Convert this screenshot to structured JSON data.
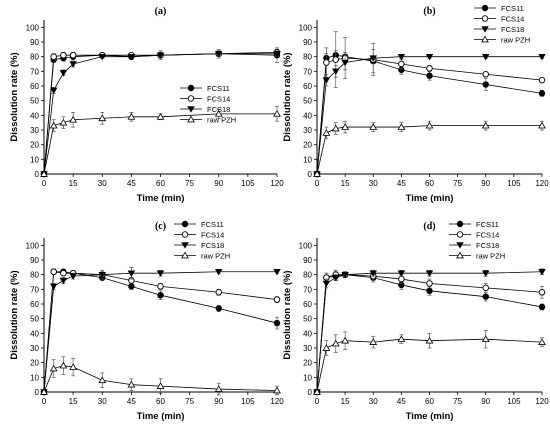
{
  "chart_data": [
    {
      "type": "line",
      "panel_label": "(a)",
      "xlabel": "Time (min)",
      "ylabel": "Dissolution rate (%)",
      "xlim": [
        0,
        120
      ],
      "ylim": [
        0,
        105
      ],
      "x_ticks": [
        0,
        15,
        30,
        45,
        60,
        75,
        90,
        105,
        120
      ],
      "y_ticks": [
        0,
        10,
        20,
        30,
        40,
        50,
        60,
        70,
        80,
        90,
        100
      ],
      "legend_position": "right-middle",
      "x": [
        0,
        5,
        10,
        15,
        30,
        45,
        60,
        90,
        120
      ],
      "series": [
        {
          "name": "FCS11",
          "marker": "circle-filled",
          "values": [
            0,
            78,
            79,
            80,
            81,
            80,
            81,
            82,
            81
          ],
          "errors": [
            0,
            2,
            2,
            2,
            1,
            2,
            3,
            3,
            5
          ]
        },
        {
          "name": "FCS14",
          "marker": "circle-open",
          "values": [
            0,
            80,
            81,
            81,
            81,
            81,
            81,
            82,
            83
          ],
          "errors": [
            0,
            2,
            2,
            2,
            1,
            1,
            2,
            2,
            2
          ]
        },
        {
          "name": "FCS18",
          "marker": "triangle-down-filled",
          "values": [
            0,
            57,
            69,
            75,
            80,
            80,
            81,
            82,
            82
          ],
          "errors": [
            0,
            2,
            2,
            2,
            1,
            1,
            2,
            2,
            2
          ]
        },
        {
          "name": "raw PZH",
          "marker": "triangle-up-open",
          "values": [
            0,
            33,
            35,
            37,
            38,
            39,
            39,
            41,
            41
          ],
          "errors": [
            0,
            4,
            4,
            5,
            4,
            3,
            2,
            3,
            5
          ]
        }
      ]
    },
    {
      "type": "line",
      "panel_label": "(b)",
      "xlabel": "Time (min)",
      "ylabel": "Dissolution rate (%)",
      "xlim": [
        0,
        120
      ],
      "ylim": [
        0,
        105
      ],
      "x_ticks": [
        0,
        15,
        30,
        45,
        60,
        75,
        90,
        105,
        120
      ],
      "y_ticks": [
        0,
        10,
        20,
        30,
        40,
        50,
        60,
        70,
        80,
        90,
        100
      ],
      "legend_position": "top-right",
      "x": [
        0,
        5,
        10,
        15,
        30,
        45,
        60,
        90,
        120
      ],
      "series": [
        {
          "name": "FCS11",
          "marker": "circle-filled",
          "values": [
            0,
            79,
            81,
            80,
            77,
            71,
            67,
            61,
            55
          ],
          "errors": [
            0,
            3,
            3,
            3,
            8,
            3,
            3,
            4,
            2
          ]
        },
        {
          "name": "FCS14",
          "marker": "circle-open",
          "values": [
            0,
            76,
            78,
            79,
            78,
            75,
            72,
            68,
            64
          ],
          "errors": [
            0,
            10,
            19,
            14,
            11,
            3,
            2,
            1,
            1
          ]
        },
        {
          "name": "FCS18",
          "marker": "triangle-down-filled",
          "values": [
            0,
            64,
            70,
            76,
            79,
            80,
            80,
            80,
            80
          ],
          "errors": [
            0,
            4,
            4,
            5,
            1,
            1,
            1,
            1,
            1
          ]
        },
        {
          "name": "raw PZH",
          "marker": "triangle-up-open",
          "values": [
            0,
            28,
            31,
            32,
            32,
            32,
            33,
            33,
            33
          ],
          "errors": [
            0,
            4,
            4,
            4,
            3,
            3,
            3,
            3,
            3
          ]
        }
      ]
    },
    {
      "type": "line",
      "panel_label": "(c)",
      "xlabel": "Time (min)",
      "ylabel": "Dissolution rate (%)",
      "xlim": [
        0,
        120
      ],
      "ylim": [
        0,
        105
      ],
      "x_ticks": [
        0,
        15,
        30,
        45,
        60,
        75,
        90,
        105,
        120
      ],
      "y_ticks": [
        0,
        10,
        20,
        30,
        40,
        50,
        60,
        70,
        80,
        90,
        100
      ],
      "legend_position": "top-right",
      "x": [
        0,
        5,
        10,
        15,
        30,
        45,
        60,
        90,
        120
      ],
      "series": [
        {
          "name": "FCS11",
          "marker": "circle-filled",
          "values": [
            0,
            82,
            82,
            81,
            78,
            72,
            66,
            57,
            47
          ],
          "errors": [
            0,
            2,
            1,
            1,
            2,
            2,
            3,
            2,
            4
          ]
        },
        {
          "name": "FCS14",
          "marker": "circle-open",
          "values": [
            0,
            82,
            81,
            81,
            80,
            76,
            72,
            68,
            63
          ],
          "errors": [
            0,
            1,
            1,
            1,
            1,
            2,
            2,
            2,
            2
          ]
        },
        {
          "name": "FCS18",
          "marker": "triangle-down-filled",
          "values": [
            0,
            72,
            76,
            79,
            80,
            81,
            81,
            82,
            82
          ],
          "errors": [
            0,
            2,
            2,
            2,
            3,
            4,
            2,
            1,
            1
          ]
        },
        {
          "name": "raw PZH",
          "marker": "triangle-up-open",
          "values": [
            0,
            16,
            18,
            17,
            8,
            5,
            4,
            2,
            1
          ],
          "errors": [
            0,
            6,
            6,
            6,
            5,
            4,
            5,
            4,
            3
          ]
        }
      ]
    },
    {
      "type": "line",
      "panel_label": "(d)",
      "xlabel": "Time (min)",
      "ylabel": "Dissolution rate (%)",
      "xlim": [
        0,
        120
      ],
      "ylim": [
        0,
        105
      ],
      "x_ticks": [
        0,
        15,
        30,
        45,
        60,
        75,
        90,
        105,
        120
      ],
      "y_ticks": [
        0,
        10,
        20,
        30,
        40,
        50,
        60,
        70,
        80,
        90,
        100
      ],
      "legend_position": "top-right",
      "x": [
        0,
        5,
        10,
        15,
        30,
        45,
        60,
        90,
        120
      ],
      "series": [
        {
          "name": "FCS11",
          "marker": "circle-filled",
          "values": [
            0,
            78,
            79,
            80,
            78,
            73,
            69,
            65,
            58
          ],
          "errors": [
            0,
            3,
            3,
            2,
            3,
            3,
            3,
            3,
            2
          ]
        },
        {
          "name": "FCS14",
          "marker": "circle-open",
          "values": [
            0,
            78,
            80,
            80,
            79,
            77,
            74,
            71,
            68
          ],
          "errors": [
            0,
            3,
            3,
            2,
            3,
            3,
            3,
            3,
            4
          ]
        },
        {
          "name": "FCS18",
          "marker": "triangle-down-filled",
          "values": [
            0,
            74,
            78,
            80,
            81,
            81,
            81,
            81,
            82
          ],
          "errors": [
            0,
            3,
            2,
            2,
            2,
            2,
            2,
            2,
            2
          ]
        },
        {
          "name": "raw PZH",
          "marker": "triangle-up-open",
          "values": [
            0,
            30,
            33,
            35,
            34,
            36,
            35,
            36,
            34
          ],
          "errors": [
            0,
            5,
            6,
            6,
            4,
            3,
            5,
            6,
            3
          ]
        }
      ]
    }
  ]
}
